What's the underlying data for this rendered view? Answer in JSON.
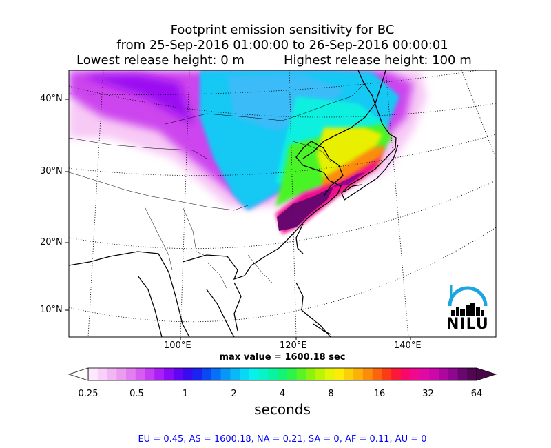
{
  "title": {
    "line1": "Footprint emission sensitivity for BC",
    "line2": "from 25-Sep-2016 01:00:00 to 26-Sep-2016 00:00:01",
    "line3_left": "Lowest release height: 0 m",
    "line3_right": "Highest release height: 100 m"
  },
  "map": {
    "lat_labels": [
      "40°N",
      "30°N",
      "20°N",
      "10°N"
    ],
    "lon_labels": [
      "100°E",
      "120°E",
      "140°E"
    ],
    "max_value_text": "max value = 1600.18 sec",
    "logo_text": "NILU"
  },
  "colorbar": {
    "ticks": [
      "0.25",
      "0.5",
      "1",
      "2",
      "4",
      "8",
      "16",
      "32",
      "64"
    ],
    "label": "seconds",
    "colors": [
      "#fde8fd",
      "#f9d0f9",
      "#f3b6f4",
      "#eb9cef",
      "#e27ff0",
      "#d65cf2",
      "#c43df4",
      "#a91ff6",
      "#8a0cf6",
      "#6006f2",
      "#3a0af0",
      "#1c22f2",
      "#0a48f4",
      "#0870f6",
      "#0896f7",
      "#08b8f7",
      "#08d8f5",
      "#08f0ec",
      "#08f4c8",
      "#08f4a0",
      "#12f474",
      "#2cf44a",
      "#5af426",
      "#8cf40c",
      "#bcf406",
      "#e4f406",
      "#fcec08",
      "#fcd008",
      "#fcb00a",
      "#fc8c0c",
      "#fc640e",
      "#fc3c16",
      "#fc1838",
      "#f8086c",
      "#f0088e",
      "#e208a6",
      "#cc08aa",
      "#b006a0",
      "#900690",
      "#6a0670",
      "#500650"
    ]
  },
  "region_stats": "EU = 0.45,  AS = 1600.18,  NA = 0.21,  SA = 0,  AF = 0.11,  AU = 0"
}
